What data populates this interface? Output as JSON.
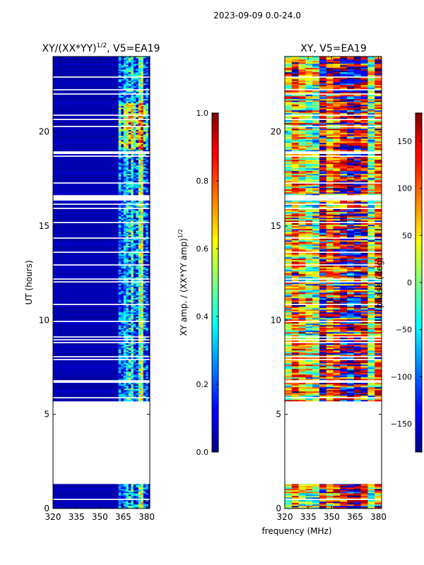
{
  "figure": {
    "suptitle": "2023-09-09 0.0-24.0",
    "xlabel_shared": "frequency (MHz)"
  },
  "chart_data": [
    {
      "type": "heatmap",
      "title": "XY/(XX*YY)^1/2, V5=EA19",
      "title_main": "XY/(XX*YY)",
      "title_exp": "1/2",
      "title_tail": ", V5=EA19",
      "xlabel": "",
      "ylabel": "UT (hours)",
      "xlim": [
        320,
        382
      ],
      "ylim": [
        0,
        24
      ],
      "xticks": [
        "320",
        "335",
        "350",
        "365",
        "380"
      ],
      "xtick_values": [
        320,
        335,
        350,
        365,
        380
      ],
      "yticks": [
        "0",
        "5",
        "10",
        "15",
        "20"
      ],
      "ytick_values": [
        0,
        5,
        10,
        15,
        20
      ],
      "data_regions_hours": [
        [
          0.0,
          1.3
        ],
        [
          5.7,
          24.0
        ]
      ],
      "active_band_mhz": [
        362,
        381
      ],
      "background_value": 0.0,
      "colorbar": {
        "label": "XY amp. / (XX*YY amp)^1/2",
        "label_main": "XY amp. / (XX*YY amp)",
        "label_exp": "1/2",
        "range": [
          0.0,
          1.0
        ],
        "ticks": [
          "0.0",
          "0.2",
          "0.4",
          "0.6",
          "0.8",
          "1.0"
        ],
        "tick_values": [
          0.0,
          0.2,
          0.4,
          0.6,
          0.8,
          1.0
        ]
      }
    },
    {
      "type": "heatmap",
      "title": "XY, V5=EA19",
      "xlabel": "frequency (MHz)",
      "ylabel": "",
      "xlim": [
        320,
        382
      ],
      "ylim": [
        0,
        24
      ],
      "xticks": [
        "320",
        "335",
        "350",
        "365",
        "380"
      ],
      "xtick_values": [
        320,
        335,
        350,
        365,
        380
      ],
      "yticks": [
        "0",
        "5",
        "10",
        "15",
        "20"
      ],
      "ytick_values": [
        0,
        5,
        10,
        15,
        20
      ],
      "data_regions_hours": [
        [
          0.0,
          1.3
        ],
        [
          5.7,
          24.0
        ]
      ],
      "colorbar": {
        "label": "phase (deg)",
        "range": [
          -180,
          180
        ],
        "ticks": [
          "−150",
          "−100",
          "−50",
          "0",
          "50",
          "100",
          "150"
        ],
        "tick_values": [
          -150,
          -100,
          -50,
          0,
          50,
          100,
          150
        ]
      }
    }
  ]
}
